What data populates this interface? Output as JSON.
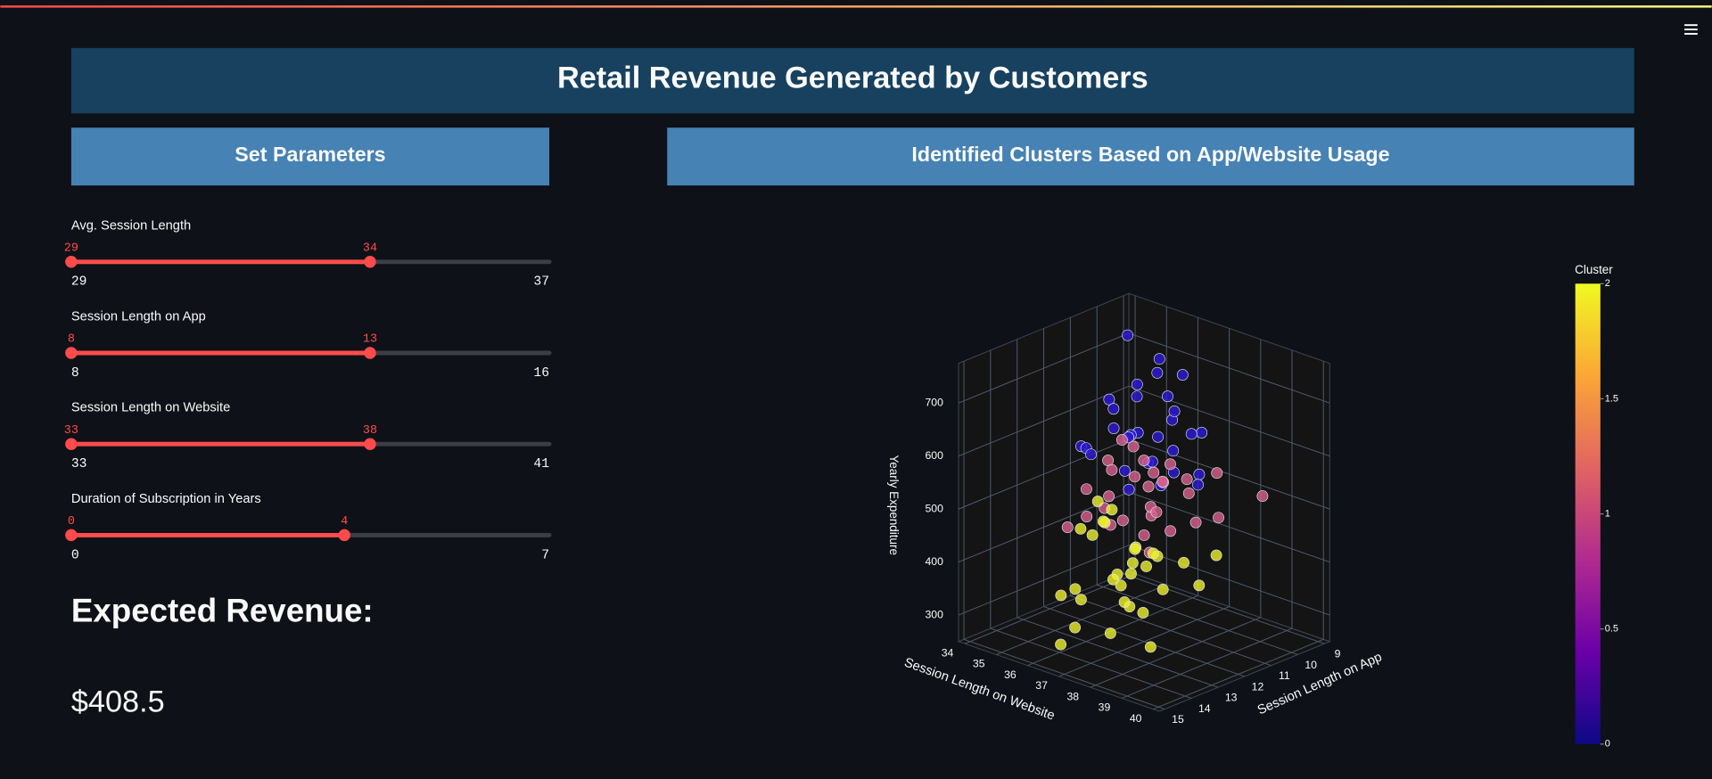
{
  "header": {
    "title": "Retail Revenue Generated by Customers"
  },
  "parameters": {
    "title": "Set Parameters",
    "sliders": [
      {
        "label": "Avg. Session Length",
        "min": 29,
        "max": 37,
        "value": [
          29,
          34
        ]
      },
      {
        "label": "Session Length on App",
        "min": 8,
        "max": 16,
        "value": [
          8,
          13
        ]
      },
      {
        "label": "Session Length on Website",
        "min": 33,
        "max": 41,
        "value": [
          33,
          38
        ]
      },
      {
        "label": "Duration of Subscription in Years",
        "min": 0,
        "max": 7,
        "value": [
          0,
          4
        ]
      }
    ]
  },
  "result": {
    "label": "Expected Revenue:",
    "value": "$408.5"
  },
  "chart_panel": {
    "title": "Identified Clusters Based on App/Website Usage"
  },
  "chart_data": {
    "type": "scatter3d",
    "xlabel": "Session Length on Website",
    "ylabel": "Session Length on App",
    "zlabel": "Yearly Expenditure",
    "xlim": [
      33.8,
      40.2
    ],
    "ylim": [
      8.8,
      15.2
    ],
    "zlim": [
      250,
      775
    ],
    "xticks": [
      34,
      35,
      36,
      37,
      38,
      39,
      40
    ],
    "yticks": [
      9,
      10,
      11,
      12,
      13,
      14,
      15
    ],
    "zticks": [
      300,
      400,
      500,
      600,
      700
    ],
    "grid": true,
    "series": [
      {
        "color": "#2c1ad6",
        "x": [
          35.2,
          36.1,
          36.8,
          37.5,
          38.2,
          36.4,
          37.0,
          35.8,
          36.9,
          37.8,
          38.5,
          36.2,
          37.3,
          35.5,
          36.6,
          37.9,
          38.8,
          36.0,
          37.1,
          37.6,
          36.3,
          38.0,
          35.9,
          37.4,
          36.7,
          38.3,
          37.2,
          36.5,
          35.6,
          37.7
        ],
        "y": [
          10.5,
          11.2,
          12.0,
          11.5,
          12.3,
          10.8,
          12.5,
          11.9,
          11.0,
          12.8,
          11.7,
          12.2,
          11.3,
          12.6,
          11.8,
          10.9,
          12.1,
          13.0,
          11.6,
          12.4,
          10.6,
          11.4,
          12.7,
          13.2,
          10.2,
          12.9,
          11.1,
          12.0,
          11.5,
          13.4
        ],
        "z": [
          760,
          700,
          640,
          610,
          600,
          720,
          650,
          680,
          690,
          620,
          590,
          640,
          660,
          600,
          700,
          640,
          585,
          615,
          630,
          610,
          740,
          650,
          595,
          605,
          710,
          590,
          670,
          625,
          650,
          580
        ]
      },
      {
        "color": "#d9608f",
        "x": [
          35.0,
          35.8,
          36.3,
          36.9,
          37.4,
          38.0,
          38.6,
          39.2,
          36.1,
          36.7,
          37.2,
          37.8,
          38.3,
          35.5,
          36.4,
          37.0,
          37.6,
          38.9,
          39.5,
          36.0,
          36.8,
          37.3,
          38.1,
          35.3,
          36.5,
          37.1,
          37.9,
          38.7,
          34.6,
          37.5
        ],
        "y": [
          11.0,
          11.8,
          12.5,
          10.9,
          12.2,
          11.5,
          12.9,
          11.8,
          13.1,
          12.0,
          13.5,
          12.7,
          10.8,
          12.4,
          11.3,
          12.8,
          11.1,
          12.3,
          10.5,
          13.7,
          11.6,
          12.0,
          13.3,
          10.4,
          12.9,
          11.4,
          12.6,
          13.8,
          10.0,
          11.9
        ],
        "z": [
          530,
          545,
          520,
          560,
          500,
          540,
          510,
          525,
          490,
          555,
          505,
          535,
          570,
          515,
          565,
          495,
          550,
          520,
          545,
          480,
          530,
          575,
          500,
          550,
          510,
          540,
          525,
          490,
          540,
          560
        ]
      },
      {
        "color": "#eef12a",
        "x": [
          35.4,
          36.2,
          36.9,
          37.5,
          38.1,
          38.7,
          39.3,
          36.5,
          37.2,
          37.8,
          38.4,
          35.8,
          36.6,
          37.4,
          38.0,
          39.0,
          36.0,
          37.0,
          37.7,
          38.6,
          35.1,
          36.8,
          37.6,
          38.3,
          39.6,
          36.3,
          37.3,
          38.9,
          35.7,
          37.9
        ],
        "y": [
          12.5,
          13.0,
          12.2,
          13.6,
          12.8,
          13.3,
          12.0,
          14.0,
          13.4,
          12.6,
          14.2,
          11.8,
          13.9,
          12.9,
          13.1,
          14.4,
          12.3,
          14.6,
          13.7,
          12.4,
          11.5,
          14.9,
          13.2,
          14.8,
          13.0,
          14.3,
          12.7,
          14.0,
          12.0,
          13.8
        ],
        "z": [
          440,
          455,
          430,
          420,
          450,
          410,
          460,
          380,
          400,
          445,
          390,
          470,
          360,
          425,
          435,
          395,
          460,
          330,
          405,
          440,
          465,
          300,
          415,
          350,
          430,
          370,
          445,
          320,
          450,
          380
        ]
      }
    ],
    "colorbar": {
      "title": "Cluster",
      "lim": [
        0,
        2
      ],
      "ticks": [
        0,
        0.5,
        1,
        1.5,
        2
      ],
      "colors": [
        "#0d0887",
        "#6a00a8",
        "#b12a90",
        "#e16462",
        "#fca636",
        "#f0f921"
      ]
    }
  }
}
